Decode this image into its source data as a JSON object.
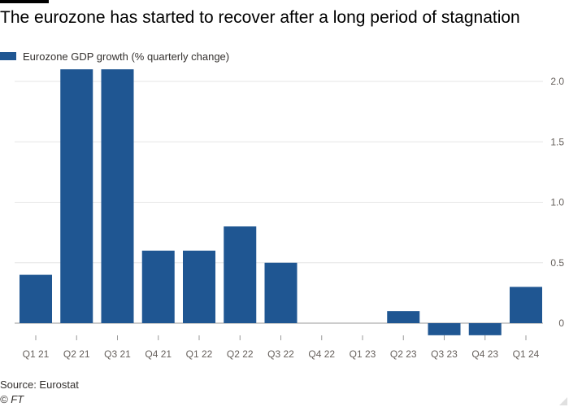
{
  "title": "The eurozone has started to recover after a long period of stagnation",
  "legend_label": "Eurozone GDP growth (% quarterly change)",
  "source": "Source: Eurostat",
  "credit": "© FT",
  "colors": {
    "bar": "#1f5692",
    "grid": "#e6e6e6",
    "zero": "#999999",
    "text": "#66605c"
  },
  "chart_data": {
    "type": "bar",
    "categories": [
      "Q1 21",
      "Q2 21",
      "Q3 21",
      "Q4 21",
      "Q1 22",
      "Q2 22",
      "Q3 22",
      "Q4 22",
      "Q1 23",
      "Q2 23",
      "Q3 23",
      "Q4 23",
      "Q1 24"
    ],
    "series": [
      {
        "name": "Eurozone GDP growth (% quarterly change)",
        "values": [
          0.4,
          2.1,
          2.1,
          0.6,
          0.6,
          0.8,
          0.5,
          0.0,
          0.0,
          0.1,
          -0.1,
          -0.1,
          0.3
        ]
      }
    ],
    "yticks": [
      "0",
      "0.5",
      "1.0",
      "1.5",
      "2.0"
    ],
    "ylim": [
      -0.1,
      2.1
    ],
    "y_axis_side": "right",
    "grid": true,
    "legend_placement": "top-left"
  }
}
